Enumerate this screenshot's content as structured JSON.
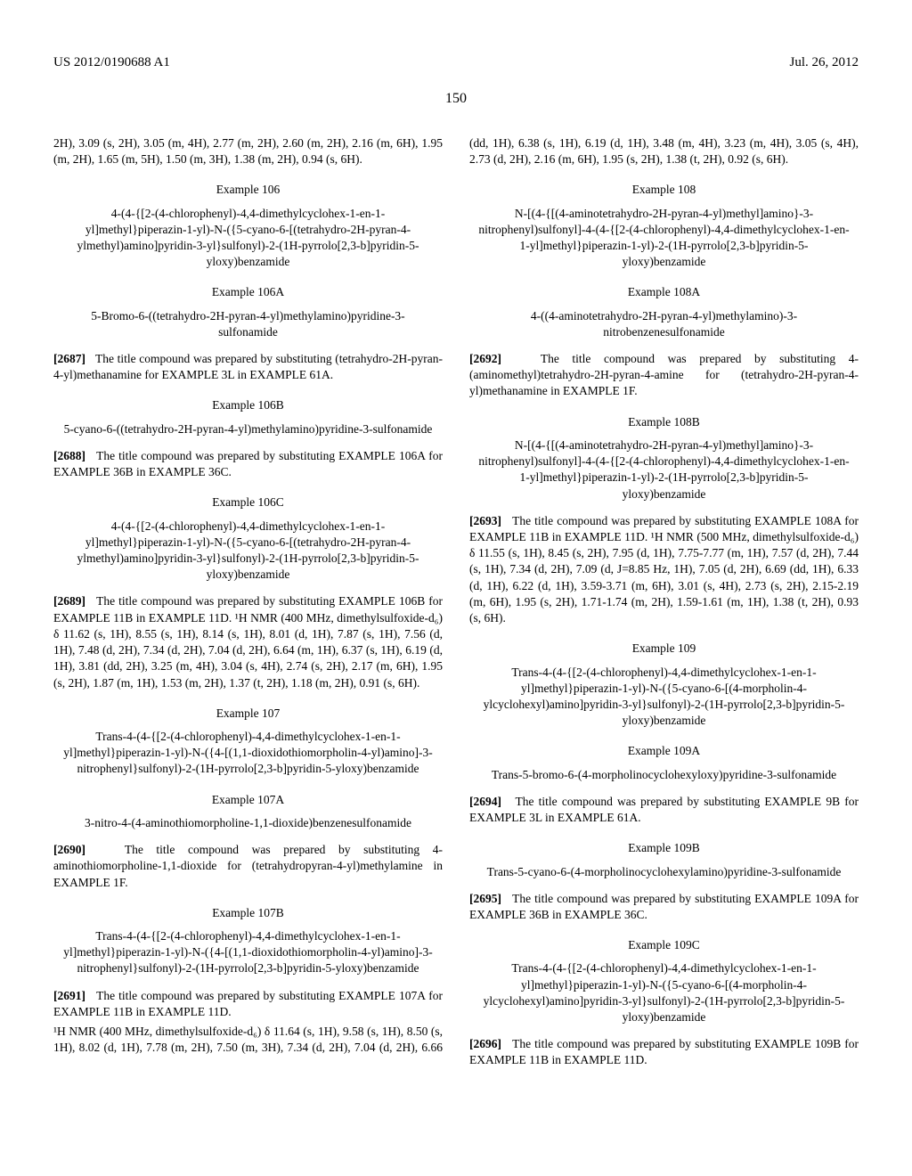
{
  "header": {
    "left": "US 2012/0190688 A1",
    "right": "Jul. 26, 2012"
  },
  "page_number": "150",
  "col1": {
    "top_frag": "2H), 3.09 (s, 2H), 3.05 (m, 4H), 2.77 (m, 2H), 2.60 (m, 2H), 2.16 (m, 6H), 1.95 (m, 2H), 1.65 (m, 5H), 1.50 (m, 3H), 1.38 (m, 2H), 0.94 (s, 6H).",
    "ex106": {
      "heading": "Example 106",
      "name": "4-(4-{[2-(4-chlorophenyl)-4,4-dimethylcyclohex-1-en-1-yl]methyl}piperazin-1-yl)-N-({5-cyano-6-[(tetrahydro-2H-pyran-4-ylmethyl)amino]pyridin-3-yl}sulfonyl)-2-(1H-pyrrolo[2,3-b]pyridin-5-yloxy)benzamide"
    },
    "ex106a": {
      "heading": "Example 106A",
      "name": "5-Bromo-6-((tetrahydro-2H-pyran-4-yl)methylamino)pyridine-3-sulfonamide",
      "para_num": "[2687]",
      "para": "The title compound was prepared by substituting (tetrahydro-2H-pyran-4-yl)methanamine for EXAMPLE 3L in EXAMPLE 61A."
    },
    "ex106b": {
      "heading": "Example 106B",
      "name": "5-cyano-6-((tetrahydro-2H-pyran-4-yl)methylamino)pyridine-3-sulfonamide",
      "para_num": "[2688]",
      "para": "The title compound was prepared by substituting EXAMPLE 106A for EXAMPLE 36B in EXAMPLE 36C."
    },
    "ex106c": {
      "heading": "Example 106C",
      "name": "4-(4-{[2-(4-chlorophenyl)-4,4-dimethylcyclohex-1-en-1-yl]methyl}piperazin-1-yl)-N-({5-cyano-6-[(tetrahydro-2H-pyran-4-ylmethyl)amino]pyridin-3-yl}sulfonyl)-2-(1H-pyrrolo[2,3-b]pyridin-5-yloxy)benzamide",
      "para_num": "[2689]",
      "para": "The title compound was prepared by substituting EXAMPLE 106B for EXAMPLE 11B in EXAMPLE 11D. ¹H NMR (400 MHz, dimethylsulfoxide-d₆) δ 11.62 (s, 1H), 8.55 (s, 1H), 8.14 (s, 1H), 8.01 (d, 1H), 7.87 (s, 1H), 7.56 (d, 1H), 7.48 (d, 2H), 7.34 (d, 2H), 7.04 (d, 2H), 6.64 (m, 1H), 6.37 (s, 1H), 6.19 (d, 1H), 3.81 (dd, 2H), 3.25 (m, 4H), 3.04 (s, 4H), 2.74 (s, 2H), 2.17 (m, 6H), 1.95 (s, 2H), 1.87 (m, 1H), 1.53 (m, 2H), 1.37 (t, 2H), 1.18 (m, 2H), 0.91 (s, 6H)."
    },
    "ex107": {
      "heading": "Example 107",
      "name": "Trans-4-(4-{[2-(4-chlorophenyl)-4,4-dimethylcyclohex-1-en-1-yl]methyl}piperazin-1-yl)-N-({4-[(1,1-dioxidothiomorpholin-4-yl)amino]-3-nitrophenyl}sulfonyl)-2-(1H-pyrrolo[2,3-b]pyridin-5-yloxy)benzamide"
    },
    "ex107a": {
      "heading": "Example 107A",
      "name": "3-nitro-4-(4-aminothiomorpholine-1,1-dioxide)benzenesulfonamide",
      "para_num": "[2690]",
      "para": "The title compound was prepared by substituting 4-aminothiomorpholine-1,1-dioxide for (tetrahydropyran-4-yl)methylamine in EXAMPLE 1F."
    },
    "ex107b": {
      "heading": "Example 107B",
      "name": "Trans-4-(4-{[2-(4-chlorophenyl)-4,4-dimethylcyclohex-1-en-1-yl]methyl}piperazin-1-yl)-N-({4-[(1,1-dioxidothiomorpholin-4-yl)amino]-3-nitrophenyl}sulfonyl)-2-(1H-pyrrolo[2,3-b]pyridin-5-yloxy)benzamide",
      "para_num": "[2691]",
      "para": "The title compound was prepared by substituting EXAMPLE 107A for EXAMPLE 11B in EXAMPLE 11D."
    }
  },
  "col2": {
    "top_frag": "¹H NMR (400 MHz, dimethylsulfoxide-d₆) δ 11.64 (s, 1H), 9.58 (s, 1H), 8.50 (s, 1H), 8.02 (d, 1H), 7.78 (m, 2H), 7.50 (m, 3H), 7.34 (d, 2H), 7.04 (d, 2H), 6.66 (dd, 1H), 6.38 (s, 1H), 6.19 (d, 1H), 3.48 (m, 4H), 3.23 (m, 4H), 3.05 (s, 4H), 2.73 (d, 2H), 2.16 (m, 6H), 1.95 (s, 2H), 1.38 (t, 2H), 0.92 (s, 6H).",
    "ex108": {
      "heading": "Example 108",
      "name": "N-[(4-{[(4-aminotetrahydro-2H-pyran-4-yl)methyl]amino}-3-nitrophenyl)sulfonyl]-4-(4-{[2-(4-chlorophenyl)-4,4-dimethylcyclohex-1-en-1-yl]methyl}piperazin-1-yl)-2-(1H-pyrrolo[2,3-b]pyridin-5-yloxy)benzamide"
    },
    "ex108a": {
      "heading": "Example 108A",
      "name": "4-((4-aminotetrahydro-2H-pyran-4-yl)methylamino)-3-nitrobenzenesulfonamide",
      "para_num": "[2692]",
      "para": "The title compound was prepared by substituting 4-(aminomethyl)tetrahydro-2H-pyran-4-amine for (tetrahydro-2H-pyran-4-yl)methanamine in EXAMPLE 1F."
    },
    "ex108b": {
      "heading": "Example 108B",
      "name": "N-[(4-{[(4-aminotetrahydro-2H-pyran-4-yl)methyl]amino}-3-nitrophenyl)sulfonyl]-4-(4-{[2-(4-chlorophenyl)-4,4-dimethylcyclohex-1-en-1-yl]methyl}piperazin-1-yl)-2-(1H-pyrrolo[2,3-b]pyridin-5-yloxy)benzamide",
      "para_num": "[2693]",
      "para": "The title compound was prepared by substituting EXAMPLE 108A for EXAMPLE 11B in EXAMPLE 11D. ¹H NMR (500 MHz, dimethylsulfoxide-d₆) δ 11.55 (s, 1H), 8.45 (s, 2H), 7.95 (d, 1H), 7.75-7.77 (m, 1H), 7.57 (d, 2H), 7.44 (s, 1H), 7.34 (d, 2H), 7.09 (d, J=8.85 Hz, 1H), 7.05 (d, 2H), 6.69 (dd, 1H), 6.33 (d, 1H), 6.22 (d, 1H), 3.59-3.71 (m, 6H), 3.01 (s, 4H), 2.73 (s, 2H), 2.15-2.19 (m, 6H), 1.95 (s, 2H), 1.71-1.74 (m, 2H), 1.59-1.61 (m, 1H), 1.38 (t, 2H), 0.93 (s, 6H)."
    },
    "ex109": {
      "heading": "Example 109",
      "name": "Trans-4-(4-{[2-(4-chlorophenyl)-4,4-dimethylcyclohex-1-en-1-yl]methyl}piperazin-1-yl)-N-({5-cyano-6-[(4-morpholin-4-ylcyclohexyl)amino]pyridin-3-yl}sulfonyl)-2-(1H-pyrrolo[2,3-b]pyridin-5-yloxy)benzamide"
    },
    "ex109a": {
      "heading": "Example 109A",
      "name": "Trans-5-bromo-6-(4-morpholinocyclohexyloxy)pyridine-3-sulfonamide",
      "para_num": "[2694]",
      "para": "The title compound was prepared by substituting EXAMPLE 9B for EXAMPLE 3L in EXAMPLE 61A."
    },
    "ex109b": {
      "heading": "Example 109B",
      "name": "Trans-5-cyano-6-(4-morpholinocyclohexylamino)pyridine-3-sulfonamide",
      "para_num": "[2695]",
      "para": "The title compound was prepared by substituting EXAMPLE 109A for EXAMPLE 36B in EXAMPLE 36C."
    },
    "ex109c": {
      "heading": "Example 109C",
      "name": "Trans-4-(4-{[2-(4-chlorophenyl)-4,4-dimethylcyclohex-1-en-1-yl]methyl}piperazin-1-yl)-N-({5-cyano-6-[(4-morpholin-4-ylcyclohexyl)amino]pyridin-3-yl}sulfonyl)-2-(1H-pyrrolo[2,3-b]pyridin-5-yloxy)benzamide",
      "para_num": "[2696]",
      "para": "The title compound was prepared by substituting EXAMPLE 109B for EXAMPLE 11B in EXAMPLE 11D."
    }
  }
}
